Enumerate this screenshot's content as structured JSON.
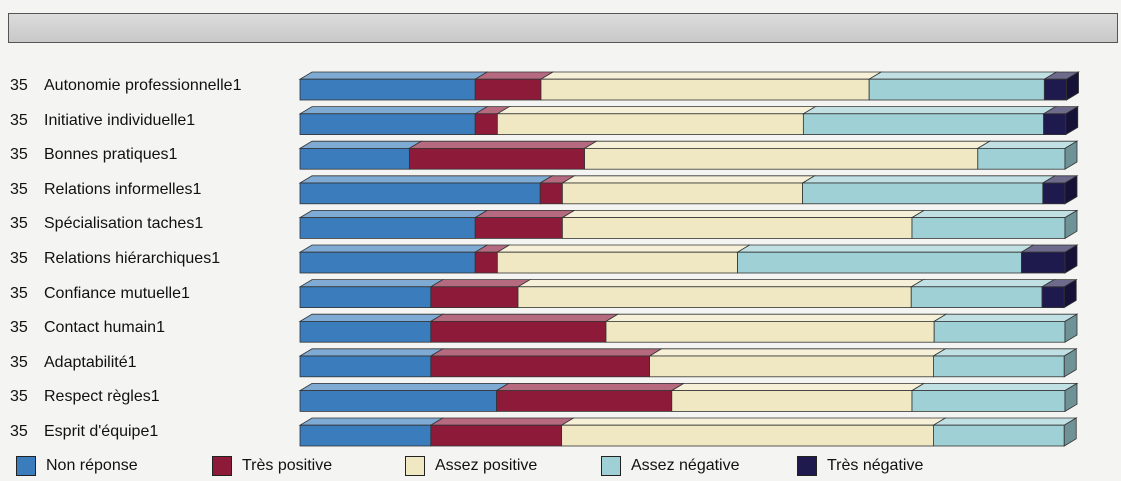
{
  "title": "",
  "chart_data": {
    "type": "bar",
    "orientation": "horizontal",
    "stacked": true,
    "normalized": true,
    "title": "",
    "xlim": [
      0,
      100
    ],
    "categories": [
      "Autonomie professionnelle1",
      "Initiative individuelle1",
      "Bonnes pratiques1",
      "Relations informelles1",
      "Spécialisation taches1",
      "Relations hiérarchiques1",
      "Confiance mutuelle1",
      "Contact humain1",
      "Adaptabilité1",
      "Respect règles1",
      "Esprit d'équipe1"
    ],
    "counts": [
      "35",
      "35",
      "35",
      "35",
      "35",
      "35",
      "35",
      "35",
      "35",
      "35",
      "35"
    ],
    "series": [
      {
        "name": "Non réponse",
        "color": "#3a7cbc",
        "values": [
          22.9,
          22.9,
          14.3,
          31.4,
          22.9,
          22.9,
          17.1,
          17.1,
          17.1,
          25.7,
          17.1
        ]
      },
      {
        "name": "Très positive",
        "color": "#8e1a3a",
        "values": [
          8.6,
          2.9,
          22.9,
          2.9,
          11.4,
          2.9,
          11.4,
          22.9,
          28.6,
          22.9,
          17.1
        ]
      },
      {
        "name": "Assez positive",
        "color": "#efe8c2",
        "values": [
          42.9,
          40.0,
          51.4,
          31.4,
          45.7,
          31.4,
          51.4,
          42.9,
          37.1,
          31.4,
          48.6
        ]
      },
      {
        "name": "Assez négative",
        "color": "#9fd0d6",
        "values": [
          22.9,
          31.4,
          11.4,
          31.4,
          20.0,
          37.1,
          17.1,
          17.1,
          17.1,
          20.0,
          17.1
        ]
      },
      {
        "name": "Très négative",
        "color": "#1f1a4e",
        "values": [
          2.9,
          2.9,
          0,
          2.9,
          0,
          5.7,
          2.9,
          0,
          0,
          0,
          0
        ]
      }
    ],
    "legend_position": "bottom"
  }
}
